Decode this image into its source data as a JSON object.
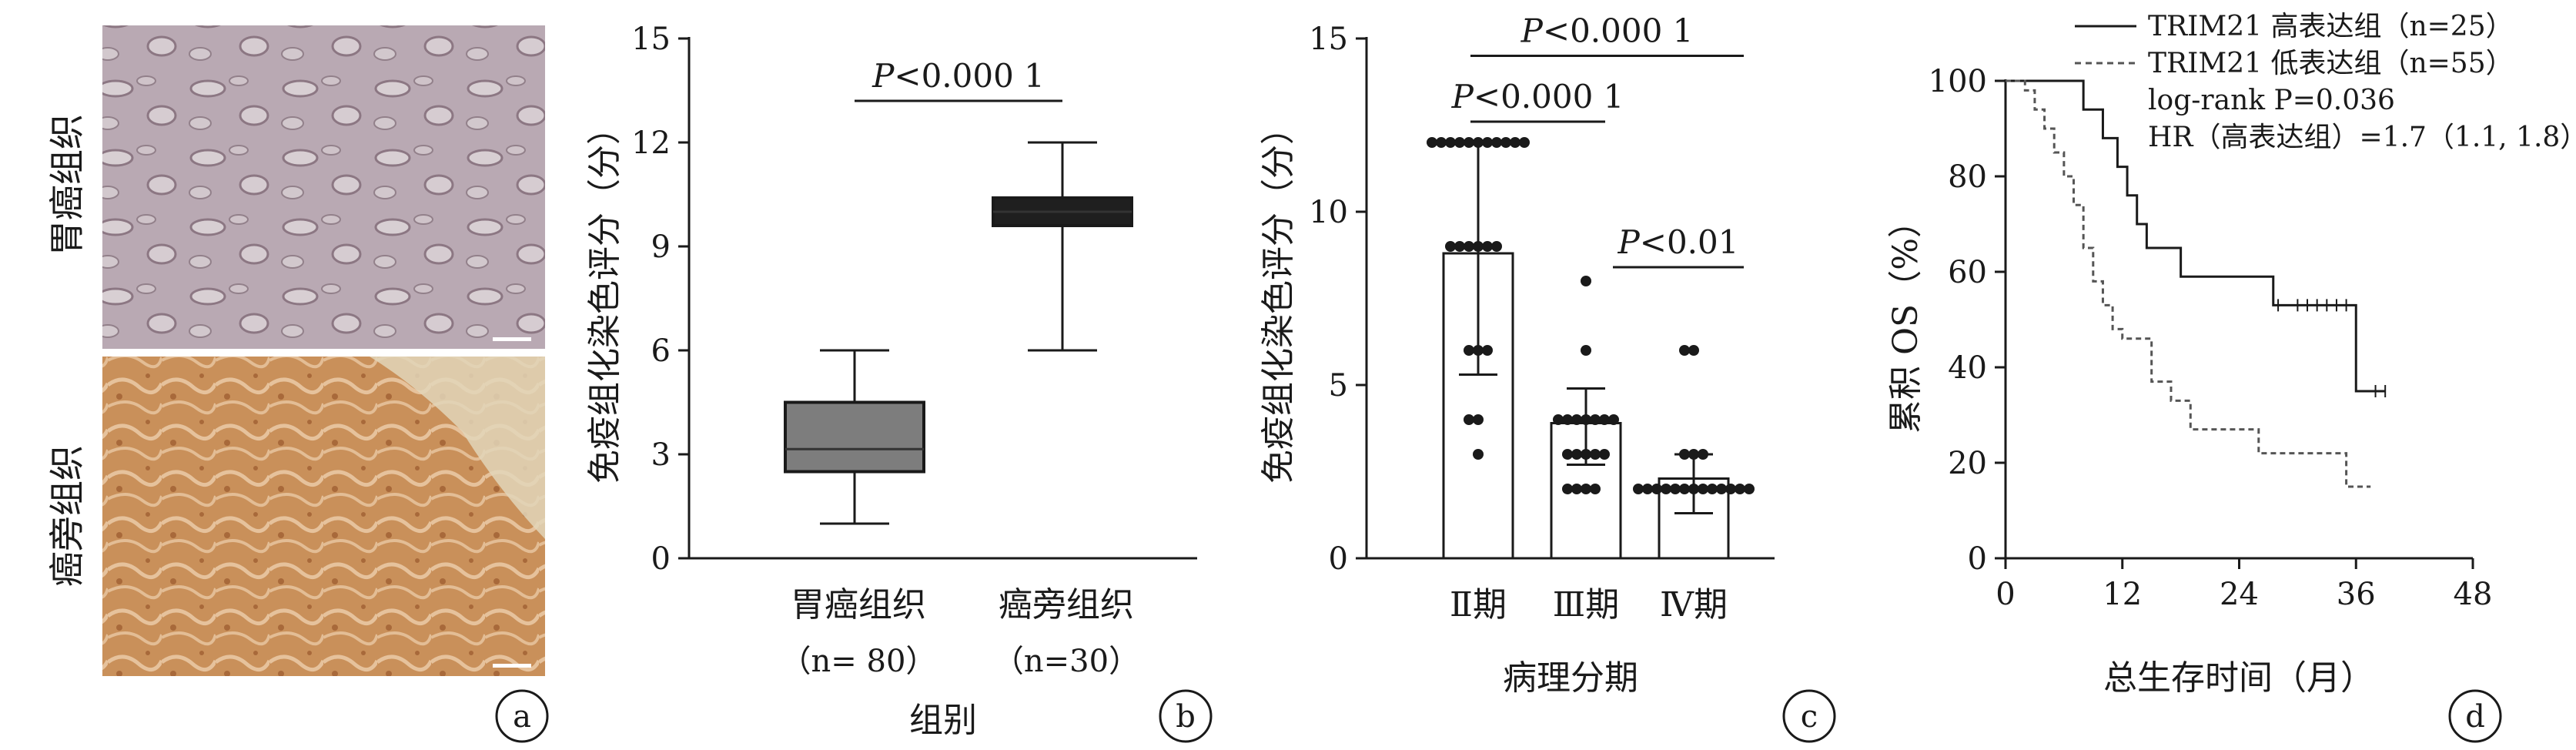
{
  "panel_a": {
    "label": "a",
    "top_label": "胃癌组织",
    "bottom_label": "癌旁组织"
  },
  "chart_data": [
    {
      "panel": "b",
      "type": "box",
      "ylabel": "免疫组化染色评分（分）",
      "xlabel": "组别",
      "ylim": [
        0,
        15
      ],
      "yticks": [
        0,
        3,
        6,
        9,
        12,
        15
      ],
      "categories": [
        {
          "name": "胃癌组织",
          "n": "（n= 80）",
          "min": 1.0,
          "q1": 2.5,
          "median": 3.15,
          "q3": 4.5,
          "max": 6.0,
          "color": "#7d7d7d"
        },
        {
          "name": "癌旁组织",
          "n": "（n=30）",
          "min": 6.0,
          "q1": 9.6,
          "median": 10.0,
          "q3": 10.4,
          "max": 12.0,
          "color": "#1f1f1f"
        }
      ],
      "annotations": [
        {
          "text": "P<0.000 1",
          "from": 0,
          "to": 1,
          "y": 13.2
        }
      ]
    },
    {
      "panel": "c",
      "type": "bar",
      "ylabel": "免疫组化染色评分（分）",
      "xlabel": "病理分期",
      "ylim": [
        0,
        15
      ],
      "yticks": [
        0,
        5,
        10,
        15
      ],
      "categories": [
        "Ⅱ期",
        "Ⅲ期",
        "Ⅳ期"
      ],
      "values": [
        8.8,
        3.9,
        2.3
      ],
      "error": [
        [
          5.3,
          12.0
        ],
        [
          2.7,
          4.9
        ],
        [
          1.3,
          3.0
        ]
      ],
      "points": [
        [
          12,
          12,
          12,
          12,
          12,
          12,
          12,
          12,
          12,
          12,
          12,
          9,
          9,
          9,
          9,
          9,
          9,
          6,
          6,
          6,
          4,
          4,
          3
        ],
        [
          8,
          6,
          4,
          4,
          4,
          4,
          4,
          4,
          4,
          3,
          3,
          3,
          3,
          3,
          2,
          2,
          2,
          2
        ],
        [
          6,
          6,
          3,
          3,
          3,
          2,
          2,
          2,
          2,
          2,
          2,
          2,
          2,
          2,
          2,
          2,
          2,
          2
        ]
      ],
      "annotations": [
        {
          "text": "P<0.000 1",
          "from": 0,
          "to": 2,
          "y": 14.5
        },
        {
          "text": "P<0.000 1",
          "from": 0,
          "to": 1,
          "y": 12.6
        },
        {
          "text": "P<0.01",
          "from": 1,
          "to": 2,
          "y": 8.4
        }
      ]
    },
    {
      "panel": "d",
      "type": "line",
      "title_lines": [
        "TRIM21 高表达组（n=25）",
        "TRIM21 低表达组（n=55）",
        "log-rank P=0.036",
        "HR（高表达组）=1.7（1.1, 1.8）"
      ],
      "ylabel": "累积 OS（%）",
      "xlabel": "总生存时间（月）",
      "xlim": [
        0,
        48
      ],
      "ylim": [
        0,
        100
      ],
      "xticks": [
        0,
        12,
        24,
        36,
        48
      ],
      "yticks": [
        0,
        20,
        40,
        60,
        80,
        100
      ],
      "series": [
        {
          "name": "TRIM21 高表达组（n=25）",
          "style": "solid",
          "x": [
            0,
            8,
            8,
            10,
            10,
            11.5,
            11.5,
            12.5,
            12.5,
            13.5,
            13.5,
            14.5,
            14.5,
            18,
            18,
            27.5,
            27.5,
            36,
            36,
            39
          ],
          "y": [
            100,
            100,
            94,
            94,
            88,
            88,
            82,
            82,
            76,
            76,
            70,
            70,
            65,
            65,
            59,
            59,
            53,
            53,
            35,
            35
          ]
        },
        {
          "name": "TRIM21 低表达组（n=55）",
          "style": "dashed",
          "x": [
            0,
            2,
            2,
            3,
            3,
            4,
            4,
            5,
            5,
            6,
            6,
            7,
            7,
            8,
            8,
            9,
            9,
            10,
            10,
            11,
            11,
            12,
            12,
            15,
            15,
            17,
            17,
            19,
            19,
            26,
            26,
            35,
            35,
            37.5
          ],
          "y": [
            100,
            100,
            98,
            98,
            94,
            94,
            90,
            90,
            85,
            85,
            80,
            80,
            74,
            74,
            65,
            65,
            58,
            58,
            53,
            53,
            48,
            48,
            46,
            46,
            37,
            37,
            33,
            33,
            27,
            27,
            22,
            22,
            15,
            15
          ]
        }
      ]
    }
  ],
  "panel_labels": {
    "b": "b",
    "c": "c",
    "d": "d"
  }
}
